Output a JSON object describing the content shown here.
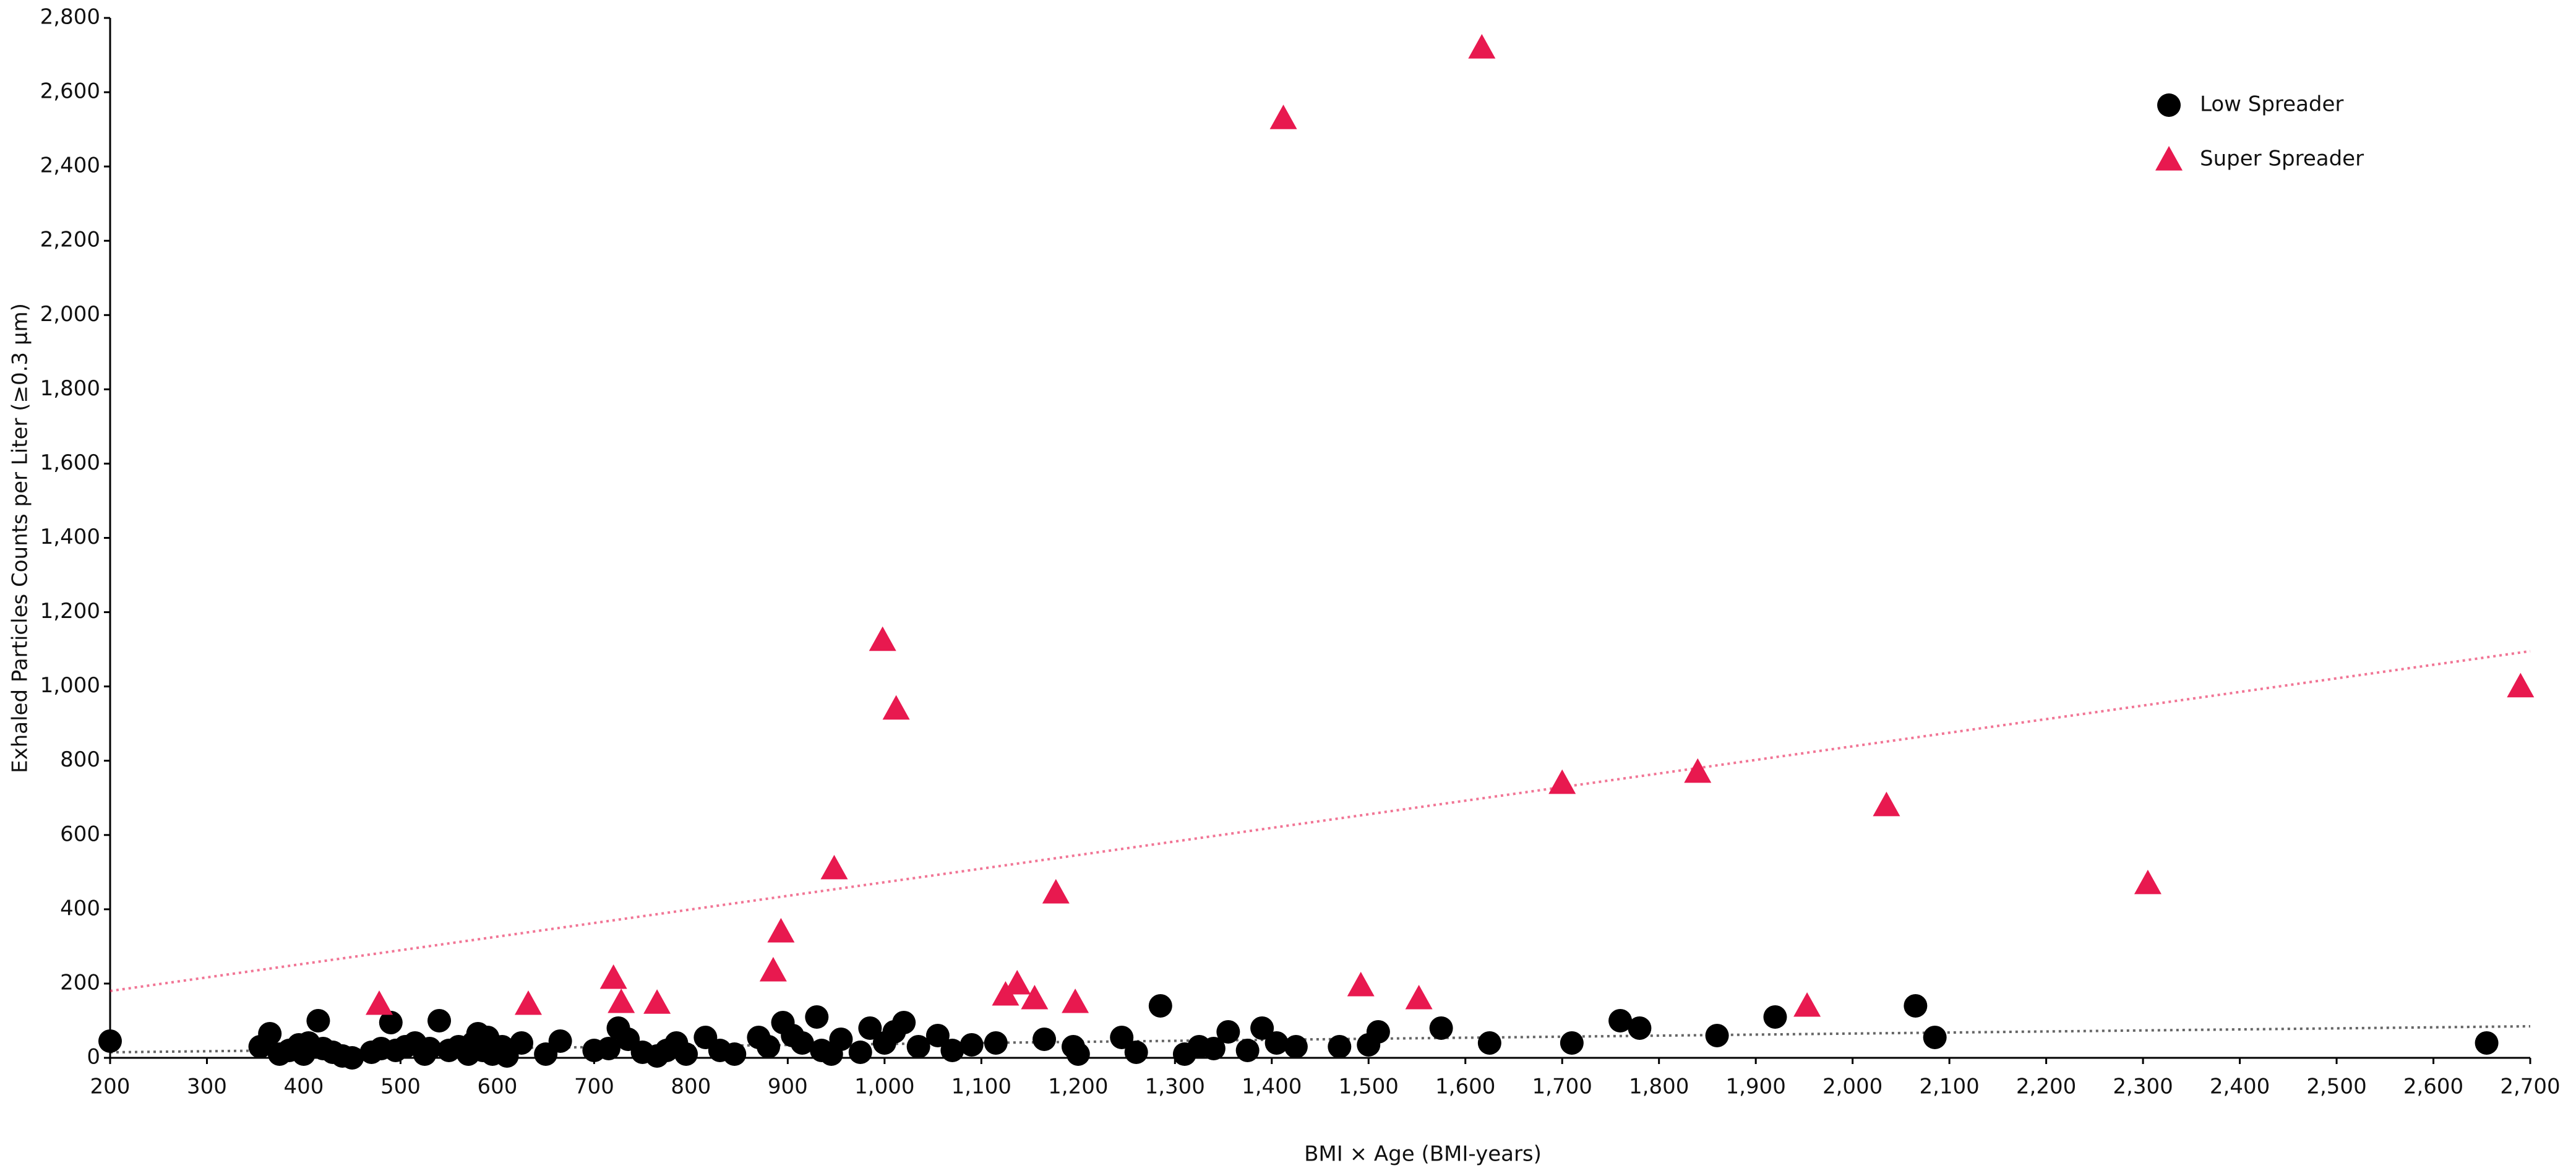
{
  "chart_data": {
    "type": "scatter",
    "xlabel": "BMI × Age (BMI-years)",
    "ylabel": "Exhaled Particles Counts per Liter (≥0.3 µm)",
    "xlim": [
      200,
      2700
    ],
    "ylim": [
      0,
      2800
    ],
    "xticks": [
      200,
      300,
      400,
      500,
      600,
      700,
      800,
      900,
      {
        "value": 1000,
        "label": "1,000"
      },
      {
        "value": 1100,
        "label": "1,100"
      },
      {
        "value": 1200,
        "label": "1,200"
      },
      {
        "value": 1300,
        "label": "1,300"
      },
      {
        "value": 1400,
        "label": "1,400"
      },
      {
        "value": 1500,
        "label": "1,500"
      },
      {
        "value": 1600,
        "label": "1,600"
      },
      {
        "value": 1700,
        "label": "1,700"
      },
      {
        "value": 1800,
        "label": "1,800"
      },
      {
        "value": 1900,
        "label": "1,900"
      },
      {
        "value": 2000,
        "label": "2,000"
      },
      {
        "value": 2100,
        "label": "2,100"
      },
      {
        "value": 2200,
        "label": "2,200"
      },
      {
        "value": 2300,
        "label": "2,300"
      },
      {
        "value": 2400,
        "label": "2,400"
      },
      {
        "value": 2500,
        "label": "2,500"
      },
      {
        "value": 2600,
        "label": "2,600"
      },
      {
        "value": 2700,
        "label": "2,700"
      }
    ],
    "yticks": [
      0,
      200,
      400,
      600,
      800,
      {
        "value": 1000,
        "label": "1,000"
      },
      {
        "value": 1200,
        "label": "1,200"
      },
      {
        "value": 1400,
        "label": "1,400"
      },
      {
        "value": 1600,
        "label": "1,600"
      },
      {
        "value": 1800,
        "label": "1,800"
      },
      {
        "value": 2000,
        "label": "2,000"
      },
      {
        "value": 2200,
        "label": "2,200"
      },
      {
        "value": 2400,
        "label": "2,400"
      },
      {
        "value": 2600,
        "label": "2,600"
      },
      {
        "value": 2800,
        "label": "2,800"
      }
    ],
    "grid": false,
    "legend": "top-right",
    "series": [
      {
        "name": "Low Spreader",
        "color": "#000000",
        "marker": "circle",
        "x": [
          200,
          355,
          365,
          375,
          385,
          395,
          400,
          405,
          415,
          420,
          430,
          440,
          450,
          470,
          480,
          490,
          495,
          505,
          515,
          525,
          530,
          540,
          550,
          560,
          570,
          575,
          580,
          585,
          590,
          595,
          605,
          610,
          625,
          650,
          665,
          700,
          715,
          725,
          735,
          750,
          765,
          775,
          785,
          795,
          815,
          830,
          845,
          870,
          880,
          895,
          905,
          915,
          930,
          935,
          945,
          955,
          975,
          985,
          1000,
          1010,
          1020,
          1035,
          1055,
          1070,
          1090,
          1115,
          1165,
          1195,
          1200,
          1245,
          1260,
          1285,
          1310,
          1325,
          1340,
          1355,
          1375,
          1390,
          1405,
          1425,
          1470,
          1500,
          1510,
          1575,
          1625,
          1710,
          1760,
          1780,
          1860,
          1920,
          2065,
          2085,
          2655
        ],
        "values": [
          45,
          30,
          65,
          10,
          20,
          35,
          10,
          40,
          100,
          25,
          15,
          5,
          0,
          15,
          25,
          95,
          20,
          30,
          40,
          10,
          25,
          100,
          20,
          30,
          10,
          40,
          65,
          20,
          55,
          10,
          30,
          5,
          40,
          10,
          45,
          20,
          25,
          80,
          50,
          15,
          5,
          20,
          40,
          10,
          55,
          20,
          10,
          55,
          30,
          95,
          60,
          40,
          110,
          20,
          10,
          50,
          15,
          80,
          40,
          70,
          95,
          30,
          60,
          20,
          35,
          40,
          50,
          30,
          10,
          55,
          15,
          140,
          10,
          30,
          25,
          70,
          20,
          80,
          40,
          30,
          30,
          35,
          70,
          80,
          40,
          40,
          100,
          80,
          60,
          110,
          140,
          55,
          40
        ],
        "trendline": {
          "x": [
            200,
            2700
          ],
          "y": [
            15,
            85
          ]
        }
      },
      {
        "name": "Super Spreader",
        "color": "#e8194f",
        "marker": "triangle",
        "x": [
          478,
          632,
          720,
          728,
          765,
          885,
          893,
          948,
          998,
          1012,
          1125,
          1137,
          1155,
          1177,
          1197,
          1412,
          1492,
          1552,
          1617,
          1700,
          1840,
          1953,
          2035,
          2305,
          2690
        ],
        "values": [
          145,
          145,
          215,
          150,
          148,
          235,
          340,
          510,
          1125,
          940,
          170,
          200,
          160,
          445,
          150,
          2530,
          195,
          160,
          2720,
          740,
          770,
          140,
          680,
          470,
          1000
        ],
        "trendline": {
          "x": [
            200,
            2700
          ],
          "y": [
            180,
            1095
          ]
        }
      }
    ]
  }
}
